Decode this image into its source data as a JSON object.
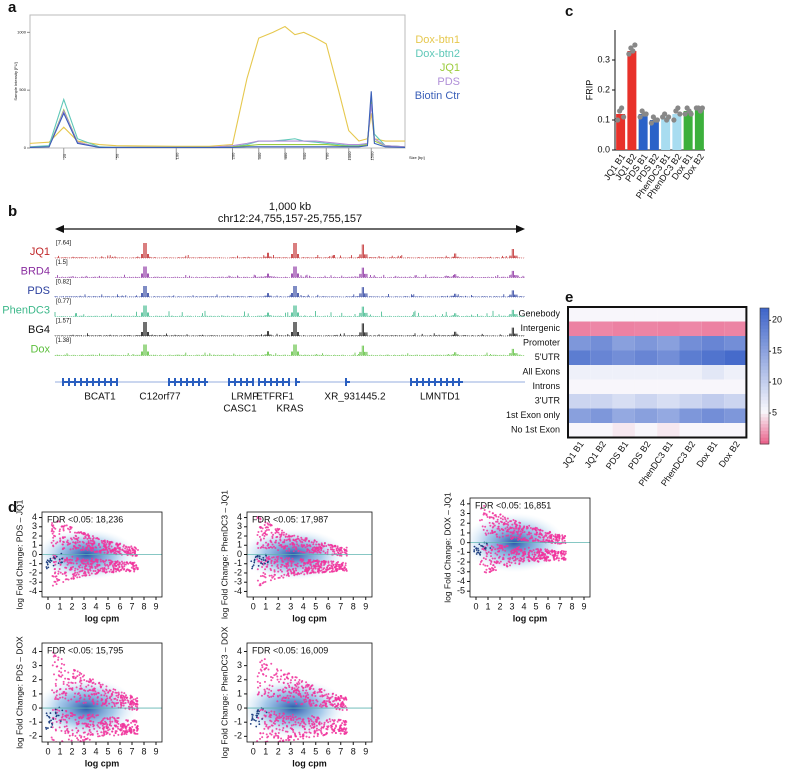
{
  "chart_data": [
    {
      "type": "line",
      "label": "a",
      "ylabel": "Sample Intensity [FU]",
      "xlabel": "Size [bp]",
      "x": [
        15,
        20,
        25,
        30,
        40,
        50,
        100,
        150,
        200,
        250,
        300,
        350,
        400,
        450,
        500,
        600,
        700,
        850,
        1000,
        1200,
        1400,
        1500,
        1600,
        2000,
        3000
      ],
      "xticks": [
        25,
        50,
        100,
        200,
        300,
        400,
        500,
        700,
        1000,
        1500
      ],
      "xlim": [
        15,
        3000
      ],
      "ylim": [
        0,
        1150
      ],
      "yticks": [
        0,
        500,
        1000
      ],
      "legend": "top-right",
      "series": [
        {
          "name": "Dox-btn1",
          "color": "#e6c84e",
          "values": [
            40,
            50,
            180,
            60,
            30,
            20,
            15,
            15,
            30,
            600,
            950,
            1000,
            1050,
            980,
            1000,
            950,
            900,
            500,
            150,
            60,
            80,
            300,
            80,
            60,
            60
          ]
        },
        {
          "name": "Dox-btn2",
          "color": "#5fc8b8",
          "values": [
            10,
            20,
            420,
            80,
            10,
            5,
            5,
            5,
            10,
            30,
            60,
            60,
            70,
            80,
            60,
            50,
            40,
            30,
            20,
            20,
            40,
            420,
            120,
            20,
            10
          ]
        },
        {
          "name": "JQ1",
          "color": "#9ccc3c",
          "values": [
            5,
            10,
            330,
            50,
            5,
            5,
            5,
            5,
            10,
            20,
            30,
            30,
            30,
            30,
            30,
            30,
            30,
            20,
            15,
            15,
            30,
            400,
            60,
            20,
            10
          ]
        },
        {
          "name": "PDS",
          "color": "#b08fd8",
          "values": [
            5,
            10,
            320,
            50,
            5,
            5,
            5,
            5,
            20,
            40,
            60,
            60,
            60,
            60,
            60,
            60,
            50,
            40,
            30,
            30,
            40,
            380,
            80,
            20,
            10
          ]
        },
        {
          "name": "Biotin Ctr",
          "color": "#3a5fb8",
          "values": [
            5,
            10,
            300,
            40,
            5,
            5,
            5,
            5,
            5,
            10,
            10,
            10,
            10,
            10,
            10,
            10,
            10,
            10,
            10,
            10,
            20,
            490,
            40,
            10,
            5
          ]
        }
      ]
    },
    {
      "type": "bar",
      "label": "c",
      "ylabel": "FRIP",
      "categories": [
        "JQ1 B1",
        "JQ1 B2",
        "PDS B1",
        "PDS B2",
        "PhenDC3 B1",
        "PhenDC3 B2",
        "Dox B1",
        "Dox B2"
      ],
      "values": [
        0.12,
        0.33,
        0.12,
        0.1,
        0.11,
        0.12,
        0.13,
        0.14
      ],
      "colors": [
        "#e8312a",
        "#e8312a",
        "#2a62c8",
        "#2a62c8",
        "#a8dcf0",
        "#a8dcf0",
        "#3cb03c",
        "#3cb03c"
      ],
      "points": [
        [
          0.1,
          0.13,
          0.14,
          0.11
        ],
        [
          0.32,
          0.34,
          0.33,
          0.35
        ],
        [
          0.11,
          0.13,
          0.12,
          0.12
        ],
        [
          0.09,
          0.11,
          0.1,
          0.1
        ],
        [
          0.11,
          0.12,
          0.1,
          0.11
        ],
        [
          0.1,
          0.13,
          0.14,
          0.12
        ],
        [
          0.12,
          0.14,
          0.13,
          0.12
        ],
        [
          0.14,
          0.14,
          0.13,
          0.14
        ]
      ],
      "ylim": [
        0,
        0.4
      ],
      "yticks": [
        {
          "value": 0,
          "label": "0.0"
        },
        0.1,
        0.2,
        0.3
      ]
    },
    {
      "type": "heatmap",
      "label": "e",
      "rows": [
        "Genebody",
        "Intergenic",
        "Promoter",
        "5'UTR",
        "All Exons",
        "Introns",
        "3'UTR",
        "1st Exon only",
        "No 1st Exon"
      ],
      "columns": [
        "JQ1 B1",
        "JQ1 B2",
        "PDS B1",
        "PDS B2",
        "PhenDC3 B1",
        "PhenDC3 B2",
        "Dox B1",
        "Dox B2"
      ],
      "values": [
        [
          5,
          5,
          5,
          5,
          5,
          5,
          5,
          5
        ],
        [
          1,
          1.2,
          1,
          1.1,
          1,
          1.2,
          1,
          1.1
        ],
        [
          16,
          17,
          15,
          16,
          15,
          17,
          18,
          17
        ],
        [
          19,
          18,
          17,
          18,
          17,
          19,
          20,
          21
        ],
        [
          6,
          6,
          6,
          6,
          6,
          6,
          7,
          6
        ],
        [
          5,
          5,
          5,
          5,
          5,
          5,
          5,
          5
        ],
        [
          9,
          9,
          8,
          9,
          8,
          9,
          10,
          9
        ],
        [
          15,
          16,
          14,
          15,
          14,
          16,
          17,
          16
        ],
        [
          5,
          5,
          4.5,
          5,
          4.5,
          5,
          5,
          5
        ]
      ],
      "clim": [
        0,
        22
      ],
      "cticks": [
        5,
        10,
        15,
        20
      ]
    },
    {
      "type": "scatter",
      "label": "d",
      "annotation": "FDR <0.05: 18,236",
      "ylabel": "log Fold Change: PDS – JQ1",
      "xlabel": "log cpm",
      "xlim": [
        -0.5,
        9.5
      ],
      "xticks": [
        0,
        1,
        2,
        3,
        4,
        5,
        6,
        7,
        8,
        9
      ],
      "ylim": [
        -4.6,
        4.6
      ],
      "yticks": [
        -4,
        -3,
        -2,
        -1,
        0,
        1,
        2,
        3,
        4
      ]
    },
    {
      "type": "scatter",
      "annotation": "FDR <0.05: 17,987",
      "ylabel": "log Fold Change: PhenDC3 – JQ1",
      "xlabel": "log cpm",
      "xlim": [
        -0.5,
        9.5
      ],
      "xticks": [
        0,
        1,
        2,
        3,
        4,
        5,
        6,
        7,
        8,
        9
      ],
      "ylim": [
        -4.6,
        4.6
      ],
      "yticks": [
        -4,
        -3,
        -2,
        -1,
        0,
        1,
        2,
        3,
        4
      ]
    },
    {
      "type": "scatter",
      "annotation": "FDR <0.05: 16,851",
      "ylabel": "log Fold Change: DOX – JQ1",
      "xlabel": "log cpm",
      "xlim": [
        -0.5,
        9.5
      ],
      "xticks": [
        0,
        1,
        2,
        3,
        4,
        5,
        6,
        7,
        8,
        9
      ],
      "ylim": [
        -5.6,
        4.6
      ],
      "yticks": [
        -5,
        -4,
        -3,
        -2,
        -1,
        0,
        1,
        2,
        3,
        4
      ]
    },
    {
      "type": "scatter",
      "annotation": "FDR <0.05: 15,795",
      "ylabel": "log Fold Change: PDS – DOX",
      "xlabel": "log cpm",
      "xlim": [
        -0.5,
        9.5
      ],
      "xticks": [
        0,
        1,
        2,
        3,
        4,
        5,
        6,
        7,
        8,
        9
      ],
      "ylim": [
        -2.4,
        4.6
      ],
      "yticks": [
        -2,
        -1,
        0,
        1,
        2,
        3,
        4
      ]
    },
    {
      "type": "scatter",
      "annotation": "FDR <0.05: 16,009",
      "ylabel": "log Fold Change: PhenDC3 – DOX",
      "xlabel": "log cpm",
      "xlim": [
        -0.5,
        9.5
      ],
      "xticks": [
        0,
        1,
        2,
        3,
        4,
        5,
        6,
        7,
        8,
        9
      ],
      "ylim": [
        -2.4,
        4.6
      ],
      "yticks": [
        -2,
        -1,
        0,
        1,
        2,
        3,
        4
      ]
    }
  ],
  "genome_browser": {
    "label": "b",
    "scale": "1,000 kb",
    "region": "chr12:24,755,157-25,755,157",
    "tracks": [
      {
        "name": "JQ1",
        "range": "[7.64]",
        "color": "#c0282a"
      },
      {
        "name": "BRD4",
        "range": "[1.5]",
        "color": "#8a2ea0"
      },
      {
        "name": "PDS",
        "range": "[0.82]",
        "color": "#2a3f9e"
      },
      {
        "name": "PhenDC3",
        "range": "[0.77]",
        "color": "#3cb88a"
      },
      {
        "name": "BG4",
        "range": "[1.57]",
        "color": "#111111"
      },
      {
        "name": "Dox",
        "range": "[1.38]",
        "color": "#5cbf3c"
      }
    ],
    "genes": [
      "BCAT1",
      "C12orf77",
      "LRMP",
      "CASC1",
      "ETFRF1",
      "KRAS",
      "XR_931445.2",
      "LMNTD1"
    ]
  }
}
